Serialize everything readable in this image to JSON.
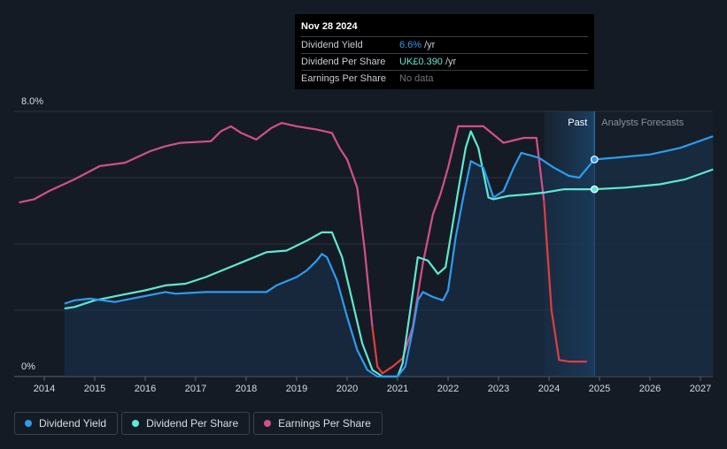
{
  "tooltip": {
    "date": "Nov 28 2024",
    "rows": [
      {
        "label": "Dividend Yield",
        "value": "6.6%",
        "unit": "/yr"
      },
      {
        "label": "Dividend Per Share",
        "value": "UK£0.390",
        "unit": "/yr"
      },
      {
        "label": "Earnings Per Share",
        "value": "No data",
        "unit": ""
      }
    ]
  },
  "legend": [
    {
      "label": "Dividend Yield",
      "color": "#2d9cf0"
    },
    {
      "label": "Dividend Per Share",
      "color": "#5fe8d2"
    },
    {
      "label": "Earnings Per Share",
      "color": "#d24f8e"
    }
  ],
  "chart_data": {
    "type": "line",
    "x_ticks": [
      "2014",
      "2015",
      "2016",
      "2017",
      "2018",
      "2019",
      "2020",
      "2021",
      "2022",
      "2023",
      "2024",
      "2025",
      "2026",
      "2027"
    ],
    "y_labels": [
      "8.0%",
      "0%"
    ],
    "ylim": [
      0,
      8
    ],
    "xlim": [
      2013.5,
      2027.25
    ],
    "regions": {
      "past_label": "Past",
      "forecast_label": "Analysts Forecasts",
      "past_start": 2023.9,
      "past_end": 2024.9
    },
    "series": [
      {
        "name": "Dividend Yield",
        "unit": "%",
        "color": "#2d9cf0",
        "points": [
          [
            2014.4,
            2.2
          ],
          [
            2014.6,
            2.3
          ],
          [
            2014.9,
            2.35
          ],
          [
            2015.4,
            2.25
          ],
          [
            2015.9,
            2.4
          ],
          [
            2016.4,
            2.55
          ],
          [
            2016.6,
            2.5
          ],
          [
            2017.2,
            2.55
          ],
          [
            2018.0,
            2.55
          ],
          [
            2018.4,
            2.55
          ],
          [
            2018.6,
            2.75
          ],
          [
            2019.0,
            3.0
          ],
          [
            2019.2,
            3.2
          ],
          [
            2019.4,
            3.5
          ],
          [
            2019.5,
            3.7
          ],
          [
            2019.6,
            3.6
          ],
          [
            2019.8,
            2.9
          ],
          [
            2020.0,
            1.8
          ],
          [
            2020.2,
            0.8
          ],
          [
            2020.4,
            0.2
          ],
          [
            2020.6,
            0.0
          ],
          [
            2021.0,
            0.0
          ],
          [
            2021.15,
            0.3
          ],
          [
            2021.3,
            1.4
          ],
          [
            2021.4,
            2.3
          ],
          [
            2021.5,
            2.55
          ],
          [
            2021.7,
            2.4
          ],
          [
            2021.9,
            2.3
          ],
          [
            2022.0,
            2.6
          ],
          [
            2022.15,
            4.2
          ],
          [
            2022.3,
            5.4
          ],
          [
            2022.45,
            6.5
          ],
          [
            2022.7,
            6.3
          ],
          [
            2022.9,
            5.4
          ],
          [
            2023.1,
            5.6
          ],
          [
            2023.3,
            6.3
          ],
          [
            2023.45,
            6.75
          ],
          [
            2023.8,
            6.6
          ],
          [
            2024.1,
            6.3
          ],
          [
            2024.4,
            6.05
          ],
          [
            2024.6,
            6.0
          ],
          [
            2024.9,
            6.55
          ],
          [
            2025.3,
            6.6
          ],
          [
            2026.0,
            6.7
          ],
          [
            2026.6,
            6.9
          ],
          [
            2027.25,
            7.25
          ]
        ]
      },
      {
        "name": "Dividend Per Share",
        "unit": "%",
        "color": "#5fe8d2",
        "points": [
          [
            2014.4,
            2.05
          ],
          [
            2014.6,
            2.1
          ],
          [
            2015.0,
            2.3
          ],
          [
            2015.5,
            2.45
          ],
          [
            2016.0,
            2.6
          ],
          [
            2016.4,
            2.75
          ],
          [
            2016.8,
            2.8
          ],
          [
            2017.2,
            3.0
          ],
          [
            2017.6,
            3.25
          ],
          [
            2018.0,
            3.5
          ],
          [
            2018.4,
            3.75
          ],
          [
            2018.8,
            3.8
          ],
          [
            2019.2,
            4.1
          ],
          [
            2019.5,
            4.35
          ],
          [
            2019.7,
            4.35
          ],
          [
            2019.9,
            3.6
          ],
          [
            2020.1,
            2.3
          ],
          [
            2020.3,
            1.0
          ],
          [
            2020.5,
            0.2
          ],
          [
            2020.7,
            0.0
          ],
          [
            2021.0,
            0.0
          ],
          [
            2021.1,
            0.4
          ],
          [
            2021.25,
            2.0
          ],
          [
            2021.4,
            3.6
          ],
          [
            2021.6,
            3.5
          ],
          [
            2021.8,
            3.1
          ],
          [
            2021.95,
            3.3
          ],
          [
            2022.05,
            4.2
          ],
          [
            2022.2,
            5.6
          ],
          [
            2022.35,
            6.9
          ],
          [
            2022.45,
            7.4
          ],
          [
            2022.6,
            6.9
          ],
          [
            2022.8,
            5.4
          ],
          [
            2022.9,
            5.35
          ],
          [
            2023.2,
            5.45
          ],
          [
            2023.6,
            5.5
          ],
          [
            2023.9,
            5.55
          ],
          [
            2024.3,
            5.65
          ],
          [
            2024.9,
            5.65
          ],
          [
            2025.5,
            5.7
          ],
          [
            2026.2,
            5.8
          ],
          [
            2026.7,
            5.95
          ],
          [
            2027.25,
            6.25
          ]
        ]
      },
      {
        "name": "Earnings Per Share",
        "unit": "%",
        "color": "#d24f8e",
        "negative_color": "#e03e3e",
        "points": [
          [
            2013.5,
            5.25
          ],
          [
            2013.8,
            5.35
          ],
          [
            2014.1,
            5.6
          ],
          [
            2014.6,
            5.95
          ],
          [
            2015.1,
            6.35
          ],
          [
            2015.6,
            6.45
          ],
          [
            2016.1,
            6.8
          ],
          [
            2016.4,
            6.95
          ],
          [
            2016.7,
            7.05
          ],
          [
            2017.3,
            7.1
          ],
          [
            2017.5,
            7.4
          ],
          [
            2017.7,
            7.55
          ],
          [
            2017.9,
            7.35
          ],
          [
            2018.2,
            7.15
          ],
          [
            2018.5,
            7.5
          ],
          [
            2018.7,
            7.65
          ],
          [
            2019.0,
            7.55
          ],
          [
            2019.4,
            7.45
          ],
          [
            2019.7,
            7.35
          ],
          [
            2019.85,
            6.9
          ],
          [
            2020.0,
            6.55
          ],
          [
            2020.2,
            5.7
          ],
          [
            2020.35,
            3.8
          ],
          [
            2020.5,
            1.5
          ],
          [
            2020.6,
            0.3
          ],
          [
            2020.7,
            0.1
          ],
          [
            2020.9,
            0.3
          ],
          [
            2021.1,
            0.55
          ],
          [
            2021.3,
            1.5
          ],
          [
            2021.5,
            3.4
          ],
          [
            2021.7,
            4.9
          ],
          [
            2021.85,
            5.5
          ],
          [
            2022.0,
            6.3
          ],
          [
            2022.2,
            7.55
          ],
          [
            2022.7,
            7.55
          ],
          [
            2023.1,
            7.05
          ],
          [
            2023.5,
            7.2
          ],
          [
            2023.75,
            7.2
          ],
          [
            2023.9,
            5.3
          ],
          [
            2024.05,
            2.0
          ],
          [
            2024.2,
            0.5
          ],
          [
            2024.4,
            0.45
          ],
          [
            2024.75,
            0.45
          ]
        ]
      }
    ],
    "markers": [
      {
        "series": "Dividend Yield",
        "x": 2024.9,
        "y": 6.55
      },
      {
        "series": "Dividend Per Share",
        "x": 2024.9,
        "y": 5.65
      }
    ]
  }
}
